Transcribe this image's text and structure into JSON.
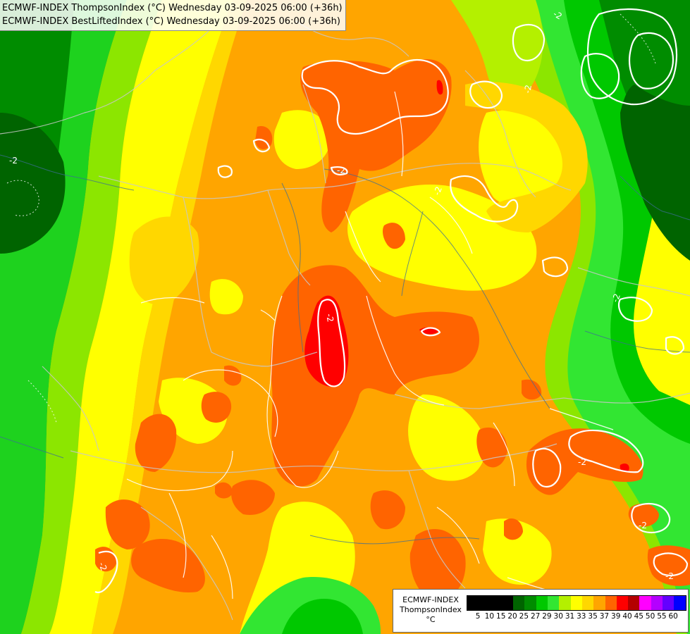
{
  "title": {
    "line1": "ECMWF-INDEX ThompsonIndex (°C) Wednesday 03-09-2025 06:00 (+36h)",
    "line2": "ECMWF-INDEX BestLiftedIndex (°C) Wednesday 03-09-2025 06:00 (+36h)"
  },
  "legend": {
    "model": "ECMWF-INDEX",
    "parameter": "ThompsonIndex",
    "unit": "°C",
    "ticks": [
      "5",
      "10",
      "15",
      "20",
      "25",
      "27",
      "29",
      "30",
      "31",
      "33",
      "35",
      "37",
      "39",
      "40",
      "45",
      "50",
      "55",
      "60"
    ],
    "colors": [
      "#000000",
      "#000000",
      "#000000",
      "#000000",
      "#006400",
      "#008c00",
      "#00c800",
      "#32e632",
      "#b4f000",
      "#ffff00",
      "#ffd700",
      "#ffa500",
      "#ff6400",
      "#ff0000",
      "#b40000",
      "#ff00ff",
      "#b400ff",
      "#6400ff",
      "#0000ff"
    ]
  },
  "contour_label": "-2",
  "colors": {
    "background": "#ffa500",
    "contour": "#ffffff",
    "borders": "#c8c8c8",
    "rivers": "#3c6e96"
  }
}
